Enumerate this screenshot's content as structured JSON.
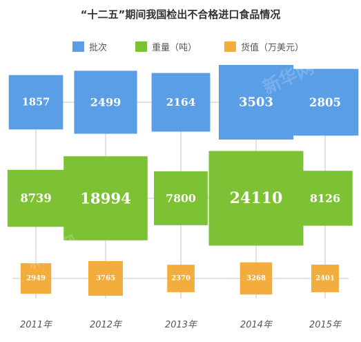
{
  "title": "“十二五”期间我国检出不合格进口食品情况",
  "legend": [
    {
      "name": "批次",
      "color": "#5a9fe6"
    },
    {
      "name": "重量（吨）",
      "color": "#7cc234"
    },
    {
      "name": "货值（万美元）",
      "color": "#f2ad3c"
    }
  ],
  "watermark": "新华网",
  "chart_data": {
    "type": "bubble-grid",
    "title": "“十二五”期间我国检出不合格进口食品情况",
    "categories": [
      "2011年",
      "2012年",
      "2013年",
      "2014年",
      "2015年"
    ],
    "series": [
      {
        "name": "批次",
        "color": "#5a9fe6",
        "values": [
          1857,
          2499,
          2164,
          3503,
          2805
        ]
      },
      {
        "name": "重量（吨）",
        "color": "#7cc234",
        "values": [
          8739,
          18994,
          7800,
          24110,
          8126
        ]
      },
      {
        "name": "货值（万美元）",
        "color": "#f2ad3c",
        "values": [
          2949,
          3765,
          2370,
          3268,
          2401
        ]
      }
    ]
  }
}
